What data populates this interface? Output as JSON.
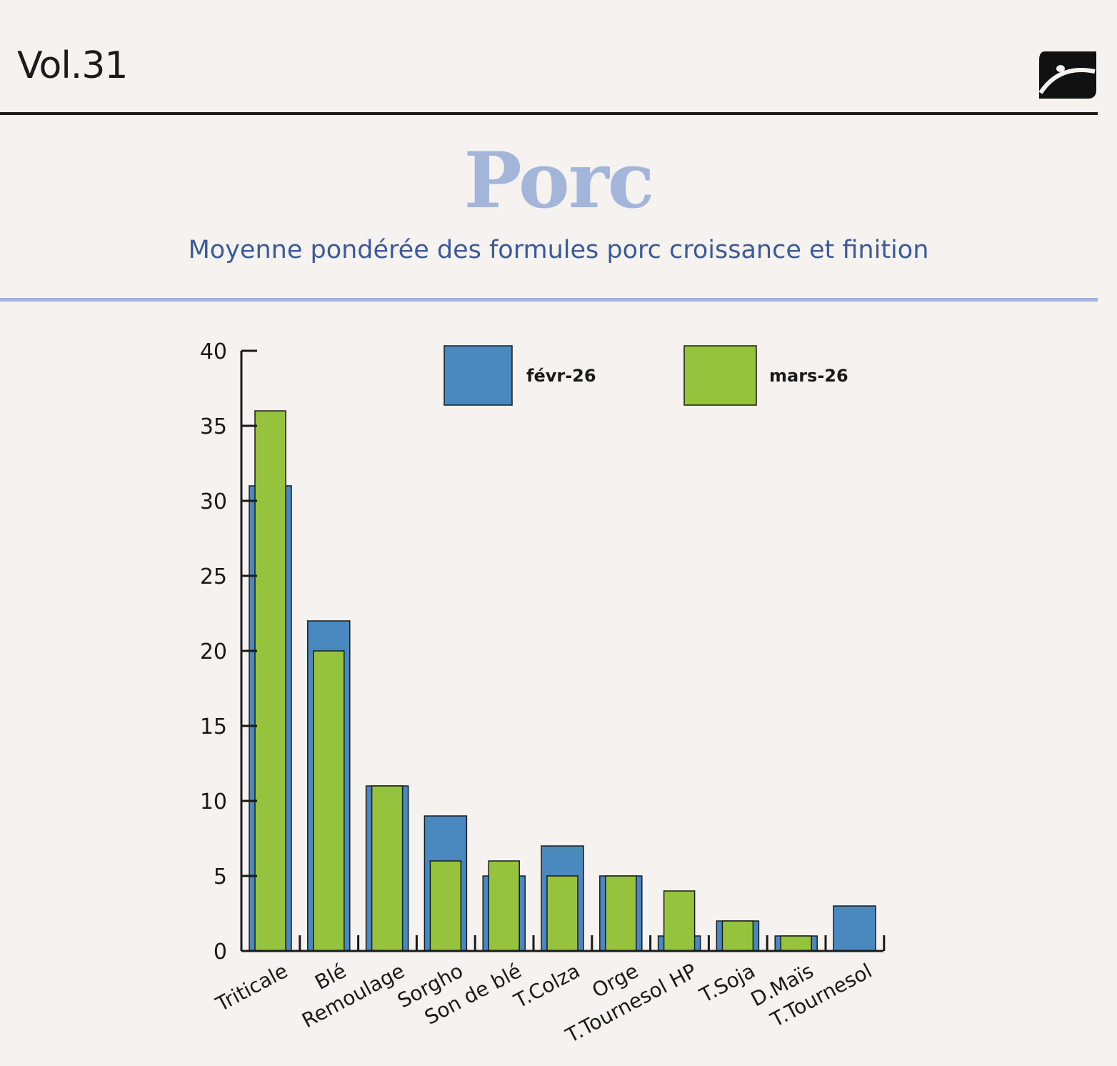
{
  "header": {
    "volume": "Vol.31"
  },
  "colors": {
    "febr": "#4a89c0",
    "mars": "#95c33d",
    "title": "#a3b6da",
    "subtitle": "#3a5a9a"
  },
  "chart_data": {
    "type": "bar",
    "title": "Porc",
    "subtitle": "Moyenne pondérée des formules porc croissance et finition",
    "categories": [
      "Triticale",
      "Blé",
      "Remoulage",
      "Sorgho",
      "Son de blé",
      "T.Colza",
      "Orge",
      "T.Tournesol HP",
      "T.Soja",
      "D.Maïs",
      "T.Tournesol"
    ],
    "series": [
      {
        "name": "févr-26",
        "values": [
          31,
          22,
          11,
          9,
          5,
          7,
          5,
          1,
          2,
          1,
          3
        ]
      },
      {
        "name": "mars-26",
        "values": [
          36,
          20,
          11,
          6,
          6,
          5,
          5,
          4,
          2,
          1,
          0
        ]
      }
    ],
    "ylim": [
      0,
      40
    ],
    "yticks": [
      0,
      5,
      10,
      15,
      20,
      25,
      30,
      35,
      40
    ],
    "xlabel": "",
    "ylabel": "",
    "legend": "top"
  }
}
